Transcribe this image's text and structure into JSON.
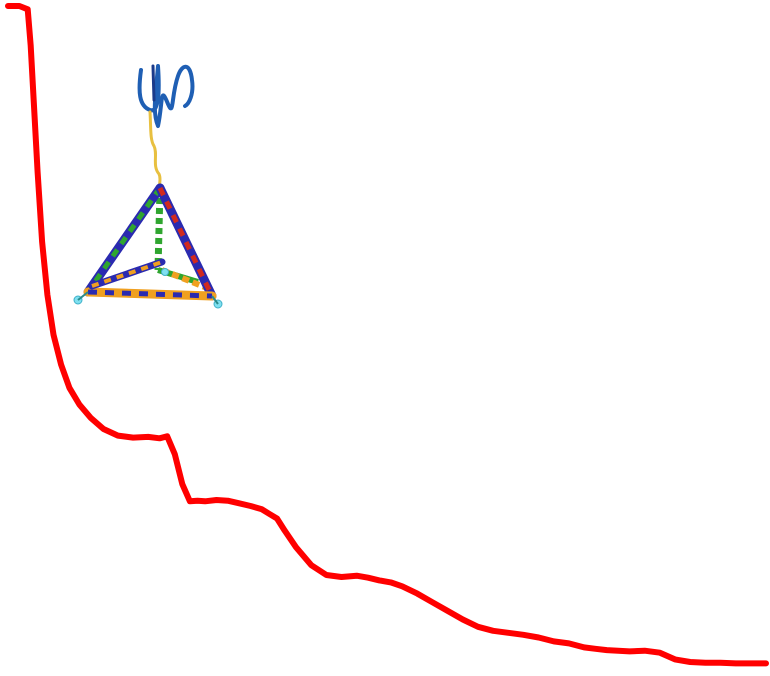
{
  "chart_data": {
    "type": "line",
    "title": "",
    "xlabel": "",
    "ylabel": "",
    "grid": false,
    "legend": "none",
    "xlim": [
      0,
      100
    ],
    "ylim": [
      0,
      100
    ],
    "series": [
      {
        "color": "#ff0000",
        "x": [
          0,
          1.5,
          2.6,
          3.0,
          3.4,
          3.9,
          4.5,
          5.2,
          6.0,
          7.0,
          8.1,
          9.4,
          10.9,
          12.6,
          14.5,
          16.5,
          18.5,
          20.0,
          21.0,
          22.0,
          23.0,
          24.0,
          25.0,
          26.0,
          27.5,
          29.0,
          30.5,
          32.0,
          33.5,
          34.5,
          35.5,
          36.5,
          38.0,
          40.0,
          42.0,
          44.0,
          46.0,
          47.5,
          49.0,
          50.5,
          52.0,
          54.0,
          56.0,
          58.0,
          60.0,
          62.0,
          64.0,
          66.0,
          68.0,
          70.0,
          72.0,
          74.0,
          76.0,
          77.5,
          79.0,
          80.5,
          82.0,
          84.0,
          86.0,
          88.0,
          90.0,
          92.0,
          94.0,
          96.0,
          98.0,
          100.0
        ],
        "y": [
          100.0,
          100.0,
          99.5,
          94.0,
          85.5,
          75.0,
          64.5,
          56.5,
          50.5,
          46.0,
          42.5,
          40.0,
          38.0,
          36.3,
          35.3,
          35.0,
          35.1,
          34.9,
          35.2,
          32.5,
          28.0,
          25.4,
          25.5,
          25.4,
          25.6,
          25.5,
          25.1,
          24.7,
          24.2,
          23.5,
          22.8,
          21.0,
          18.5,
          15.8,
          14.3,
          14.0,
          14.2,
          13.9,
          13.5,
          13.2,
          12.6,
          11.5,
          10.2,
          8.9,
          7.6,
          6.5,
          5.9,
          5.6,
          5.3,
          4.9,
          4.3,
          4.0,
          3.4,
          3.2,
          3.0,
          2.9,
          2.8,
          2.9,
          2.6,
          1.6,
          1.2,
          1.1,
          1.1,
          1.0,
          1.0,
          1.0
        ]
      }
    ]
  },
  "inset": {
    "kind": "molecular-rendering",
    "strand_colors": [
      "#1f5fb4",
      "#2a2ab0",
      "#2fa52f",
      "#d02a1f",
      "#f0a020",
      "#e8c040",
      "#7fe0f0"
    ]
  }
}
